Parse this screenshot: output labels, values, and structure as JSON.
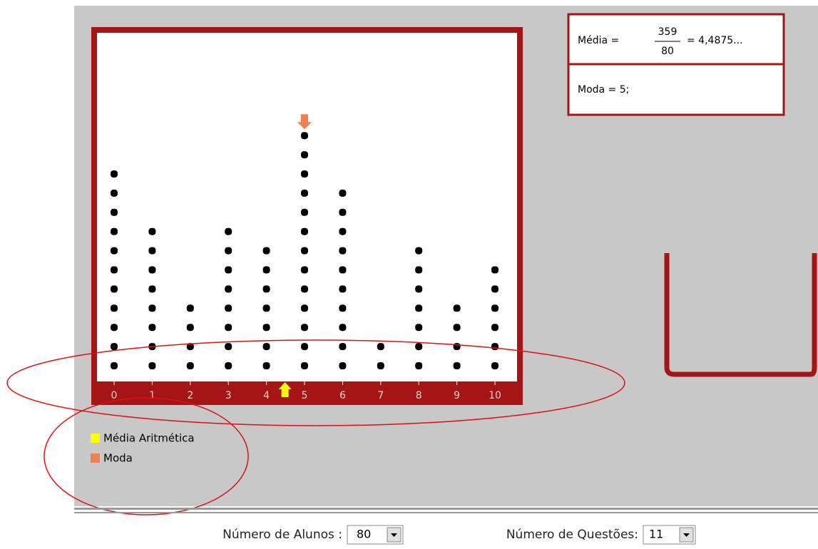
{
  "chart_data": {
    "type": "dotplot",
    "x": [
      0,
      1,
      2,
      3,
      4,
      5,
      6,
      7,
      8,
      9,
      10
    ],
    "counts": [
      11,
      8,
      4,
      8,
      7,
      13,
      10,
      2,
      7,
      4,
      6
    ],
    "color": "#000000"
  },
  "stats": {
    "mean_label": "Média =",
    "numerator": "359",
    "denominator": "80",
    "mean_result": "= 4,4875...",
    "mode_text": "Moda = 5;"
  },
  "legend": [
    {
      "name": "Média Aritmética",
      "color": "#ffff00"
    },
    {
      "name": "Moda",
      "color": "#f08050"
    }
  ],
  "controls": {
    "students_label": "Número de Alunos :",
    "students_value": "80",
    "questions_label": "Número de Questões:",
    "questions_value": "11"
  }
}
